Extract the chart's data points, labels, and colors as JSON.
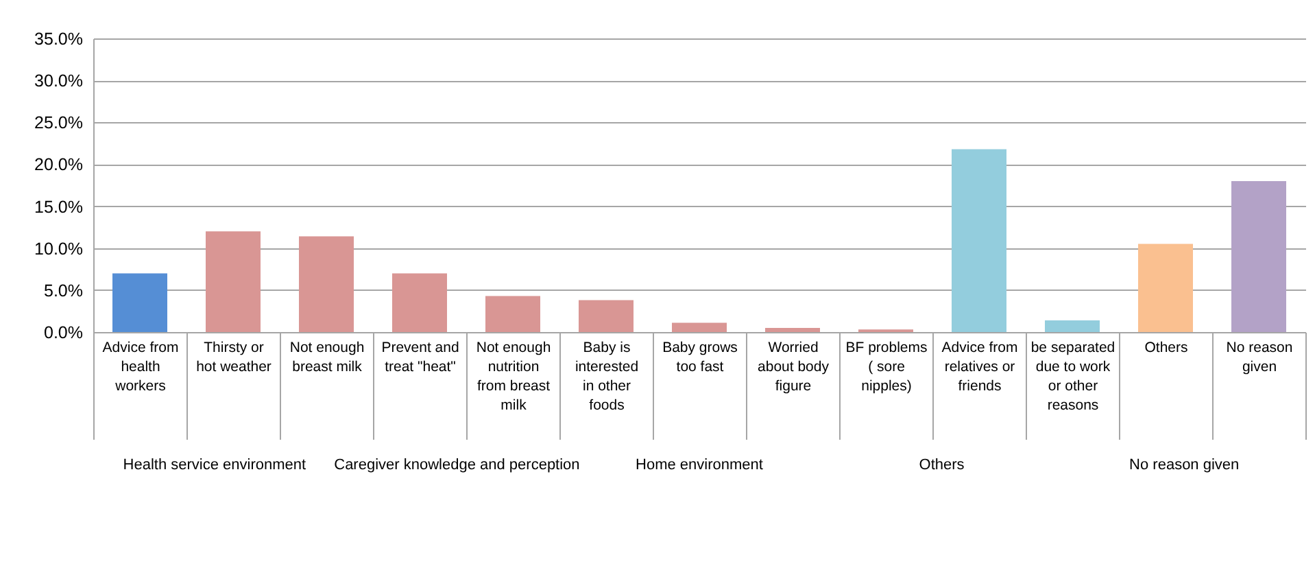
{
  "chart_data": {
    "type": "bar",
    "categories": [
      "Advice from health workers",
      "Thirsty or hot weather",
      "Not enough breast milk",
      "Prevent and treat \"heat\"",
      "Not enough nutrition from breast milk",
      "Baby is interested in other foods",
      "Baby grows too fast",
      "Worried about body figure",
      "BF problems ( sore nipples)",
      "Advice from relatives or friends",
      "be separated due to work or other reasons",
      "Others",
      "No reason given"
    ],
    "values": [
      7.0,
      12.0,
      11.4,
      7.0,
      4.3,
      3.8,
      1.1,
      0.5,
      0.3,
      21.8,
      1.4,
      10.5,
      18.0
    ],
    "colors": [
      "#558ed5",
      "#d99694",
      "#d99694",
      "#d99694",
      "#d99694",
      "#d99694",
      "#d99694",
      "#d99694",
      "#d99694",
      "#93cddd",
      "#93cddd",
      "#fac090",
      "#b3a2c7"
    ],
    "ylim": [
      0,
      35
    ],
    "yticks": [
      {
        "value": 0,
        "label": "0.0%"
      },
      {
        "value": 5,
        "label": "5.0%"
      },
      {
        "value": 10,
        "label": "10.0%"
      },
      {
        "value": 15,
        "label": "15.0%"
      },
      {
        "value": 20,
        "label": "20.0%"
      },
      {
        "value": 25,
        "label": "25.0%"
      },
      {
        "value": 30,
        "label": "30.0%"
      },
      {
        "value": 35,
        "label": "35.0%"
      }
    ],
    "grid": "y",
    "annotations": [
      "Health service environment",
      "Caregiver knowledge and perception",
      "Home environment",
      "Others",
      "No reason given"
    ]
  }
}
